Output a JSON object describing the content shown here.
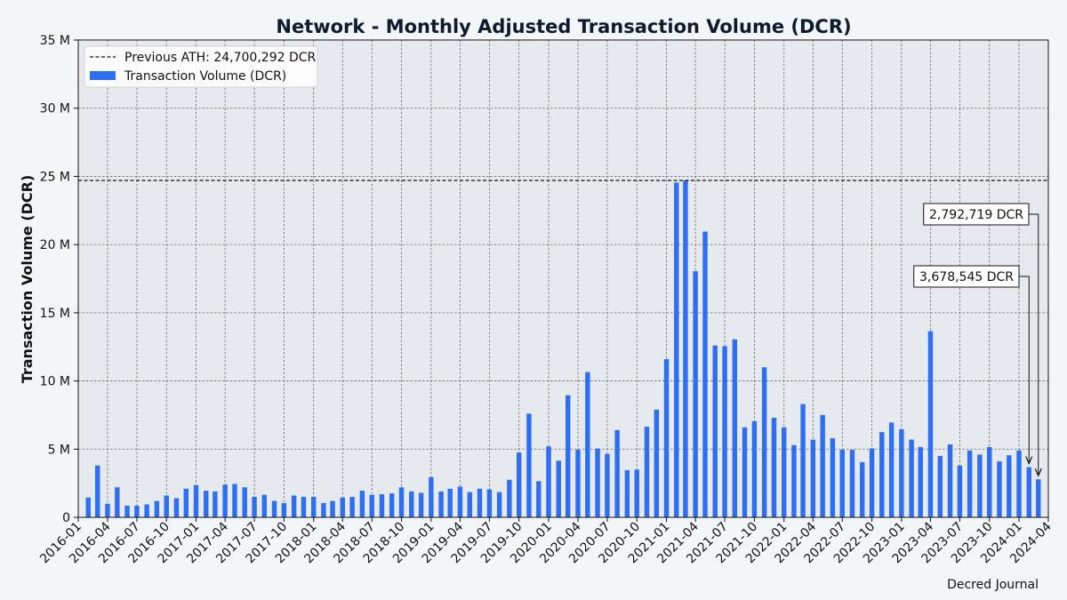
{
  "chart_data": {
    "type": "bar",
    "title": "Network - Monthly Adjusted Transaction Volume (DCR)",
    "xlabel": "",
    "ylabel": "Transaction Volume (DCR)",
    "ylim": [
      0,
      35000000
    ],
    "y_ticks": [
      {
        "value": 0,
        "label": "0"
      },
      {
        "value": 5000000,
        "label": "5 M"
      },
      {
        "value": 10000000,
        "label": "10 M"
      },
      {
        "value": 15000000,
        "label": "15 M"
      },
      {
        "value": 20000000,
        "label": "20 M"
      },
      {
        "value": 25000000,
        "label": "25 M"
      },
      {
        "value": 30000000,
        "label": "30 M"
      },
      {
        "value": 35000000,
        "label": "35 M"
      }
    ],
    "x_tick_labels": [
      "2016-01",
      "2016-04",
      "2016-07",
      "2016-10",
      "2017-01",
      "2017-04",
      "2017-07",
      "2017-10",
      "2018-01",
      "2018-04",
      "2018-07",
      "2018-10",
      "2019-01",
      "2019-04",
      "2019-07",
      "2019-10",
      "2020-01",
      "2020-04",
      "2020-07",
      "2020-10",
      "2021-01",
      "2021-04",
      "2021-07",
      "2021-10",
      "2022-01",
      "2022-04",
      "2022-07",
      "2022-10",
      "2023-01",
      "2023-04",
      "2023-07",
      "2023-10",
      "2024-01",
      "2024-04"
    ],
    "grid": true,
    "legend_position": "top-left",
    "series": [
      {
        "name": "Transaction Volume (DCR)",
        "color": "#2e6ff2",
        "categories": [
          "2016-02",
          "2016-03",
          "2016-04",
          "2016-05",
          "2016-06",
          "2016-07",
          "2016-08",
          "2016-09",
          "2016-10",
          "2016-11",
          "2016-12",
          "2017-01",
          "2017-02",
          "2017-03",
          "2017-04",
          "2017-05",
          "2017-06",
          "2017-07",
          "2017-08",
          "2017-09",
          "2017-10",
          "2017-11",
          "2017-12",
          "2018-01",
          "2018-02",
          "2018-03",
          "2018-04",
          "2018-05",
          "2018-06",
          "2018-07",
          "2018-08",
          "2018-09",
          "2018-10",
          "2018-11",
          "2018-12",
          "2019-01",
          "2019-02",
          "2019-03",
          "2019-04",
          "2019-05",
          "2019-06",
          "2019-07",
          "2019-08",
          "2019-09",
          "2019-10",
          "2019-11",
          "2019-12",
          "2020-01",
          "2020-02",
          "2020-03",
          "2020-04",
          "2020-05",
          "2020-06",
          "2020-07",
          "2020-08",
          "2020-09",
          "2020-10",
          "2020-11",
          "2020-12",
          "2021-01",
          "2021-02",
          "2021-03",
          "2021-04",
          "2021-05",
          "2021-06",
          "2021-07",
          "2021-08",
          "2021-09",
          "2021-10",
          "2021-11",
          "2021-12",
          "2022-01",
          "2022-02",
          "2022-03",
          "2022-04",
          "2022-05",
          "2022-06",
          "2022-07",
          "2022-08",
          "2022-09",
          "2022-10",
          "2022-11",
          "2022-12",
          "2023-01",
          "2023-02",
          "2023-03",
          "2023-04",
          "2023-05",
          "2023-06",
          "2023-07",
          "2023-08",
          "2023-09",
          "2023-10",
          "2023-11",
          "2023-12",
          "2024-01",
          "2024-02",
          "2024-03"
        ],
        "values": [
          1450000,
          3800000,
          1000000,
          2200000,
          850000,
          850000,
          950000,
          1200000,
          1600000,
          1400000,
          2100000,
          2350000,
          1950000,
          1900000,
          2400000,
          2450000,
          2200000,
          1500000,
          1650000,
          1200000,
          1050000,
          1600000,
          1500000,
          1500000,
          1050000,
          1200000,
          1450000,
          1500000,
          1950000,
          1650000,
          1700000,
          1750000,
          2200000,
          1900000,
          1800000,
          2950000,
          1900000,
          2100000,
          2250000,
          1850000,
          2100000,
          2050000,
          1850000,
          2750000,
          4750000,
          7600000,
          2650000,
          5200000,
          4150000,
          8950000,
          4950000,
          10650000,
          5050000,
          4650000,
          6400000,
          3450000,
          3500000,
          6650000,
          7900000,
          11600000,
          24550000,
          24700292,
          18050000,
          20950000,
          12600000,
          12550000,
          13050000,
          6600000,
          7050000,
          11000000,
          7300000,
          6600000,
          5300000,
          8300000,
          5700000,
          7500000,
          5800000,
          4950000,
          4950000,
          4050000,
          5050000,
          6250000,
          6950000,
          6450000,
          5700000,
          5150000,
          13650000,
          4500000,
          5350000,
          3800000,
          4900000,
          4600000,
          5150000,
          4100000,
          4550000,
          4900000,
          3678545,
          2792719
        ]
      }
    ],
    "reference_line": {
      "label": "Previous ATH: 24,700,292 DCR",
      "value": 24700292,
      "style": "dashed",
      "color": "#111111"
    },
    "annotations": [
      {
        "text": "2,792,719 DCR",
        "category": "2024-03",
        "value": 2792719
      },
      {
        "text": "3,678,545 DCR",
        "category": "2024-02",
        "value": 3678545
      }
    ],
    "footer": "Decred Journal"
  },
  "colors": {
    "plot_background": "#e6eaee",
    "page_background": "#f3f6f8",
    "grid": "#6b6b6b",
    "title": "#0f1a2e"
  }
}
